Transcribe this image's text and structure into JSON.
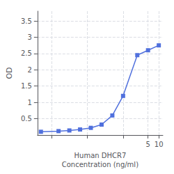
{
  "chart_data": {
    "type": "line",
    "xlabel": "Human DHCR7\nConcentration (ng/ml)",
    "ylabel": "OD",
    "x": [
      0.005,
      0.0156,
      0.0313,
      0.0625,
      0.125,
      0.25,
      0.5,
      1,
      2.5,
      5,
      10
    ],
    "values": [
      0.1,
      0.12,
      0.14,
      0.17,
      0.22,
      0.32,
      0.6,
      1.2,
      2.45,
      2.6,
      2.75
    ],
    "marker": "square",
    "log": "x",
    "xlim": [
      0.004,
      13
    ],
    "xticks": [
      {
        "value": 0.01,
        "label": null
      },
      {
        "value": 0.1,
        "label": null
      },
      {
        "value": 1,
        "label": null
      },
      5,
      10
    ],
    "ylim": [
      0,
      3.8
    ],
    "yticks": [
      0.5,
      1,
      1.5,
      2,
      2.5,
      3,
      3.5
    ],
    "grid": true
  }
}
